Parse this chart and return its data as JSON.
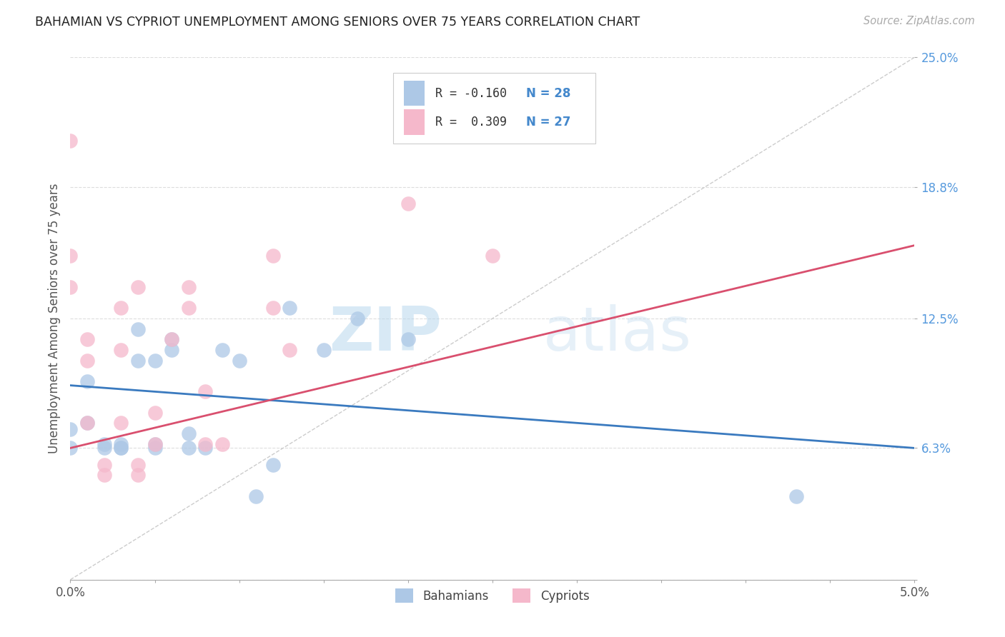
{
  "title": "BAHAMIAN VS CYPRIOT UNEMPLOYMENT AMONG SENIORS OVER 75 YEARS CORRELATION CHART",
  "source": "Source: ZipAtlas.com",
  "ylabel": "Unemployment Among Seniors over 75 years",
  "xlim": [
    0.0,
    0.05
  ],
  "ylim": [
    0.0,
    0.25
  ],
  "xticks": [
    0.0,
    0.005,
    0.01,
    0.015,
    0.02,
    0.025,
    0.03,
    0.035,
    0.04,
    0.045,
    0.05
  ],
  "xticklabels": [
    "0.0%",
    "",
    "",
    "",
    "",
    "",
    "",
    "",
    "",
    "",
    "5.0%"
  ],
  "ytick_positions": [
    0.0,
    0.063,
    0.125,
    0.188,
    0.25
  ],
  "ytick_labels": [
    "",
    "6.3%",
    "12.5%",
    "18.8%",
    "25.0%"
  ],
  "bahamian_color": "#adc8e6",
  "cypriot_color": "#f5b8cb",
  "bahamian_line_color": "#3a7abf",
  "cypriot_line_color": "#d94f6e",
  "legend_R_bah": "R = -0.160",
  "legend_N_bah": "N = 28",
  "legend_R_cyp": "R =  0.309",
  "legend_N_cyp": "N = 27",
  "watermark_zip": "ZIP",
  "watermark_atlas": "atlas",
  "bahamian_x": [
    0.0,
    0.0,
    0.001,
    0.001,
    0.002,
    0.002,
    0.003,
    0.003,
    0.003,
    0.004,
    0.004,
    0.005,
    0.005,
    0.005,
    0.006,
    0.006,
    0.007,
    0.007,
    0.008,
    0.009,
    0.01,
    0.011,
    0.012,
    0.013,
    0.015,
    0.017,
    0.02,
    0.043
  ],
  "bahamian_y": [
    0.063,
    0.072,
    0.075,
    0.095,
    0.063,
    0.065,
    0.063,
    0.063,
    0.065,
    0.105,
    0.12,
    0.063,
    0.065,
    0.105,
    0.11,
    0.115,
    0.063,
    0.07,
    0.063,
    0.11,
    0.105,
    0.04,
    0.055,
    0.13,
    0.11,
    0.125,
    0.115,
    0.04
  ],
  "cypriot_x": [
    0.0,
    0.0,
    0.0,
    0.001,
    0.001,
    0.001,
    0.002,
    0.002,
    0.003,
    0.003,
    0.003,
    0.004,
    0.004,
    0.004,
    0.005,
    0.005,
    0.006,
    0.007,
    0.007,
    0.008,
    0.008,
    0.009,
    0.012,
    0.012,
    0.013,
    0.02,
    0.025
  ],
  "cypriot_y": [
    0.21,
    0.155,
    0.14,
    0.115,
    0.105,
    0.075,
    0.055,
    0.05,
    0.075,
    0.11,
    0.13,
    0.05,
    0.055,
    0.14,
    0.065,
    0.08,
    0.115,
    0.13,
    0.14,
    0.065,
    0.09,
    0.065,
    0.13,
    0.155,
    0.11,
    0.18,
    0.155
  ],
  "bah_trend": [
    0.0,
    0.05,
    0.093,
    0.063
  ],
  "cyp_trend": [
    0.0,
    0.05,
    0.063,
    0.16
  ],
  "diag_line": [
    0.0,
    0.05,
    0.0,
    0.25
  ]
}
